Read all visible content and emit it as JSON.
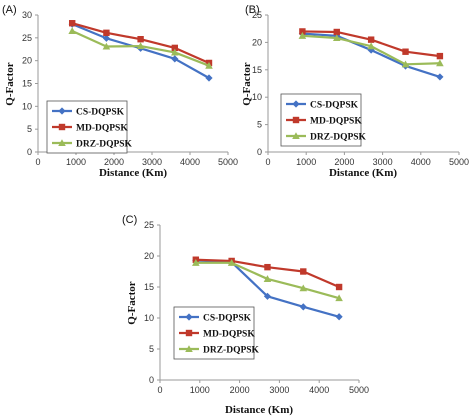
{
  "colors": {
    "axis": "#9a9a9a",
    "CS-DQPSK": "#4472c4",
    "MD-DQPSK": "#c0392b",
    "DRZ-DQPSK": "#9bbb59"
  },
  "chart_data": [
    {
      "type": "line",
      "panel_label": "(A)",
      "xlabel": "Distance (Km)",
      "ylabel": "Q-Factor",
      "xlim": [
        0,
        5000
      ],
      "ylim": [
        0,
        30
      ],
      "xticks": [
        0,
        1000,
        2000,
        3000,
        4000,
        5000
      ],
      "yticks": [
        0,
        5,
        10,
        15,
        20,
        25,
        30
      ],
      "legend_position": "bottom-left",
      "x": [
        900,
        1800,
        2700,
        3600,
        4500
      ],
      "series": [
        {
          "name": "CS-DQPSK",
          "marker": "diamond",
          "values": [
            28.0,
            24.9,
            22.7,
            20.4,
            16.2
          ]
        },
        {
          "name": "MD-DQPSK",
          "marker": "square",
          "values": [
            28.2,
            26.1,
            24.7,
            22.8,
            19.5
          ]
        },
        {
          "name": "DRZ-DQPSK",
          "marker": "triangle",
          "values": [
            26.5,
            23.1,
            23.2,
            21.8,
            18.9
          ]
        }
      ]
    },
    {
      "type": "line",
      "panel_label": "(B)",
      "xlabel": "Distance (Km)",
      "ylabel": "Q-Factor",
      "xlim": [
        0,
        5000
      ],
      "ylim": [
        0,
        25
      ],
      "xticks": [
        0,
        1000,
        2000,
        3000,
        4000,
        5000
      ],
      "yticks": [
        0,
        5,
        10,
        15,
        20,
        25
      ],
      "legend_position": "bottom-left",
      "x": [
        900,
        1800,
        2700,
        3600,
        4500
      ],
      "series": [
        {
          "name": "CS-DQPSK",
          "marker": "diamond",
          "values": [
            21.6,
            21.2,
            18.6,
            15.7,
            13.7
          ]
        },
        {
          "name": "MD-DQPSK",
          "marker": "square",
          "values": [
            22.0,
            21.9,
            20.5,
            18.3,
            17.5
          ]
        },
        {
          "name": "DRZ-DQPSK",
          "marker": "triangle",
          "values": [
            21.2,
            20.8,
            19.3,
            16.0,
            16.2
          ]
        }
      ]
    },
    {
      "type": "line",
      "panel_label": "(C)",
      "xlabel": "Distance (Km)",
      "ylabel": "Q-Factor",
      "xlim": [
        0,
        5000
      ],
      "ylim": [
        0,
        25
      ],
      "xticks": [
        0,
        1000,
        2000,
        3000,
        4000,
        5000
      ],
      "yticks": [
        0,
        5,
        10,
        15,
        20,
        25
      ],
      "legend_position": "bottom-left",
      "x": [
        900,
        1800,
        2700,
        3600,
        4500
      ],
      "series": [
        {
          "name": "CS-DQPSK",
          "marker": "diamond",
          "values": [
            19.3,
            19.0,
            13.5,
            11.8,
            10.2
          ]
        },
        {
          "name": "MD-DQPSK",
          "marker": "square",
          "values": [
            19.4,
            19.2,
            18.2,
            17.5,
            15.0
          ]
        },
        {
          "name": "DRZ-DQPSK",
          "marker": "triangle",
          "values": [
            18.9,
            18.9,
            16.3,
            14.8,
            13.2
          ]
        }
      ]
    }
  ]
}
